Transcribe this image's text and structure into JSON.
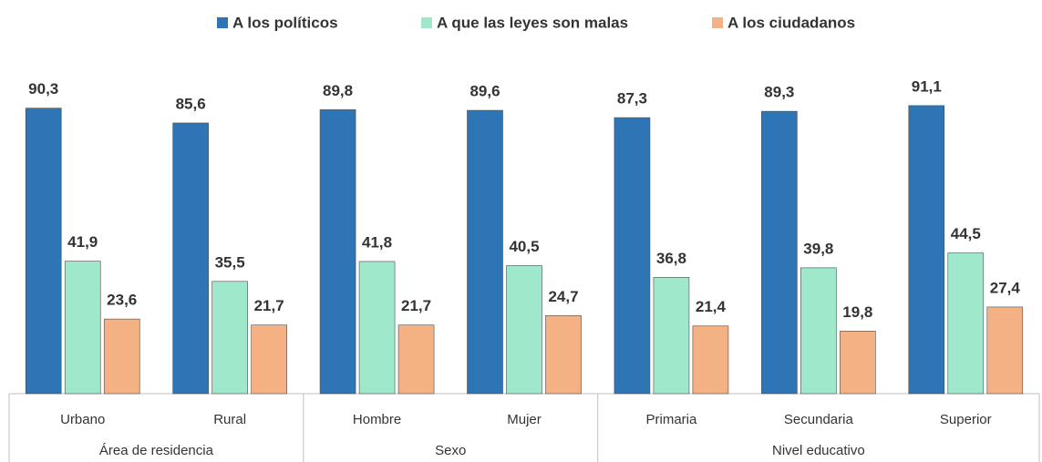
{
  "chart_data": {
    "type": "bar",
    "groups": [
      {
        "name": "Área de residencia",
        "categories": [
          "Urbano",
          "Rural"
        ]
      },
      {
        "name": "Sexo",
        "categories": [
          "Hombre",
          "Mujer"
        ]
      },
      {
        "name": "Nivel educativo",
        "categories": [
          "Primaria",
          "Secundaria",
          "Superior"
        ]
      }
    ],
    "series": [
      {
        "name": "A los políticos",
        "color": "#2e75b6",
        "values": [
          90.3,
          85.6,
          89.8,
          89.6,
          87.3,
          89.3,
          91.1
        ],
        "value_labels": [
          "90,3",
          "85,6",
          "89,8",
          "89,6",
          "87,3",
          "89,3",
          "91,1"
        ]
      },
      {
        "name": "A que las leyes son malas",
        "color": "#a0e8cb",
        "values": [
          41.9,
          35.5,
          41.8,
          40.5,
          36.8,
          39.8,
          44.5
        ],
        "value_labels": [
          "41,9",
          "35,5",
          "41,8",
          "40,5",
          "36,8",
          "39,8",
          "44,5"
        ]
      },
      {
        "name": "A los ciudadanos",
        "color": "#f4b183",
        "values": [
          23.6,
          21.7,
          21.7,
          24.7,
          21.4,
          19.8,
          27.4
        ],
        "value_labels": [
          "23,6",
          "21,7",
          "21,7",
          "24,7",
          "21,4",
          "19,8",
          "27,4"
        ]
      }
    ],
    "ylim": [
      0,
      100
    ],
    "legend": "top"
  }
}
